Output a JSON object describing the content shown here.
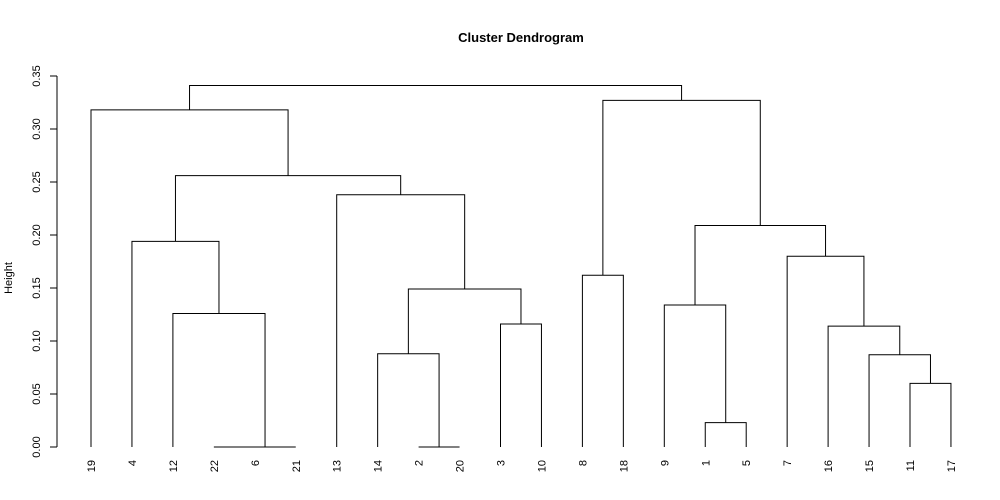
{
  "chart_data": {
    "type": "dendrogram",
    "title": "Cluster Dendrogram",
    "ylabel": "Height",
    "ylim": [
      0,
      0.35
    ],
    "yticks": [
      "0.00",
      "0.05",
      "0.10",
      "0.15",
      "0.20",
      "0.25",
      "0.30",
      "0.35"
    ],
    "yticks_values": [
      0,
      0.05,
      0.1,
      0.15,
      0.2,
      0.25,
      0.3,
      0.35
    ],
    "leaves": [
      "19",
      "4",
      "12",
      "22",
      "6",
      "21",
      "13",
      "14",
      "2",
      "20",
      "3",
      "10",
      "8",
      "18",
      "9",
      "1",
      "5",
      "7",
      "16",
      "15",
      "11",
      "17"
    ],
    "merges": [
      {
        "left": "22",
        "right": "6",
        "height": 0.0
      },
      {
        "left": "22-6",
        "right": "21",
        "height": 0.0
      },
      {
        "left": "2",
        "right": "20",
        "height": 0.0
      },
      {
        "left": "1",
        "right": "5",
        "height": 0.023
      },
      {
        "left": "11",
        "right": "17",
        "height": 0.06
      },
      {
        "left": "15",
        "right": "11-17",
        "height": 0.087
      },
      {
        "left": "14",
        "right": "2-20",
        "height": 0.088
      },
      {
        "left": "16",
        "right": "15-11-17",
        "height": 0.114
      },
      {
        "left": "3",
        "right": "10",
        "height": 0.116
      },
      {
        "left": "12",
        "right": "22-6-21",
        "height": 0.126
      },
      {
        "left": "9",
        "right": "1-5",
        "height": 0.134
      },
      {
        "left": "14-2-20",
        "right": "3-10",
        "height": 0.149
      },
      {
        "left": "8",
        "right": "18",
        "height": 0.162
      },
      {
        "left": "7",
        "right": "16-15-11-17",
        "height": 0.18
      },
      {
        "left": "4",
        "right": "12-22-6-21",
        "height": 0.194
      },
      {
        "left": "9-1-5",
        "right": "7-16-15-11-17",
        "height": 0.209
      },
      {
        "left": "13",
        "right": "14-2-20-3-10",
        "height": 0.238
      },
      {
        "left": "4-12-22-6-21",
        "right": "13-14-2-20-3-10",
        "height": 0.256
      },
      {
        "left": "19",
        "right": "4-12-22-6-21-13-14-2-20-3-10",
        "height": 0.318
      },
      {
        "left": "8-18",
        "right": "9-1-5-7-16-15-11-17",
        "height": 0.327
      },
      {
        "left": "19-4-12-22-6-21-13-14-2-20-3-10",
        "right": "8-18-9-1-5-7-16-15-11-17",
        "height": 0.341
      }
    ],
    "grid": false,
    "legend": "none"
  }
}
